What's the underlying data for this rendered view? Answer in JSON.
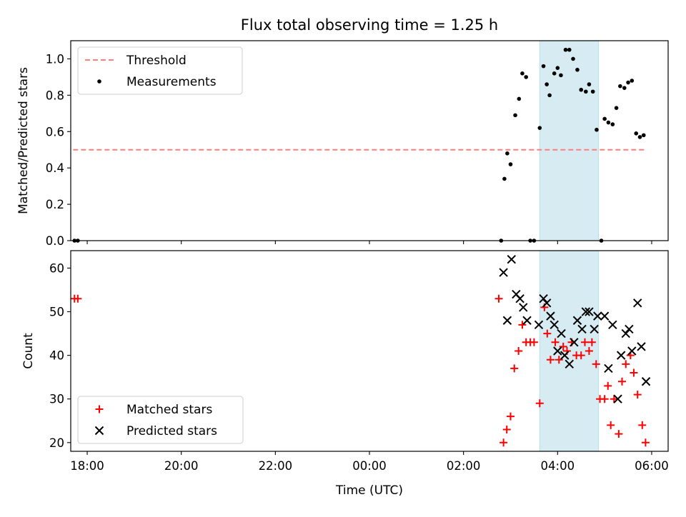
{
  "chart_data": {
    "title": "Flux total observing time = 1.25 h",
    "x_axis": {
      "label": "Time (UTC)",
      "range": [
        -6.35,
        6.35
      ],
      "ticks": [
        {
          "v": -6,
          "label": "18:00"
        },
        {
          "v": -4,
          "label": "20:00"
        },
        {
          "v": -2,
          "label": "22:00"
        },
        {
          "v": 0,
          "label": "00:00"
        },
        {
          "v": 2,
          "label": "02:00"
        },
        {
          "v": 4,
          "label": "04:00"
        },
        {
          "v": 6,
          "label": "06:00"
        }
      ]
    },
    "highlight_span": {
      "x": [
        3.62,
        4.87
      ],
      "color": "#add8e6"
    },
    "top": {
      "type": "scatter",
      "ylabel": "Matched/Predicted stars",
      "ylim": [
        0,
        1.1
      ],
      "yticks": [
        "0.0",
        "0.2",
        "0.4",
        "0.6",
        "0.8",
        "1.0"
      ],
      "threshold": {
        "name": "Threshold",
        "y": 0.5,
        "x": [
          -6.3,
          5.85
        ],
        "color": "#ff7f7f"
      },
      "measurements": {
        "name": "Measurements",
        "color": "#000000",
        "points": [
          [
            -6.27,
            0.0
          ],
          [
            -6.2,
            0.0
          ],
          [
            2.8,
            0.0
          ],
          [
            2.87,
            0.34
          ],
          [
            2.93,
            0.48
          ],
          [
            3.0,
            0.42
          ],
          [
            3.1,
            0.69
          ],
          [
            3.18,
            0.78
          ],
          [
            3.25,
            0.92
          ],
          [
            3.33,
            0.9
          ],
          [
            3.42,
            0.0
          ],
          [
            3.5,
            0.0
          ],
          [
            3.62,
            0.62
          ],
          [
            3.7,
            0.96
          ],
          [
            3.77,
            0.86
          ],
          [
            3.83,
            0.8
          ],
          [
            3.93,
            0.92
          ],
          [
            4.0,
            0.95
          ],
          [
            4.07,
            0.91
          ],
          [
            4.17,
            1.05
          ],
          [
            4.25,
            1.05
          ],
          [
            4.33,
            1.0
          ],
          [
            4.42,
            0.94
          ],
          [
            4.5,
            0.83
          ],
          [
            4.6,
            0.82
          ],
          [
            4.67,
            0.86
          ],
          [
            4.75,
            0.82
          ],
          [
            4.83,
            0.61
          ],
          [
            4.93,
            0.0
          ],
          [
            5.0,
            0.67
          ],
          [
            5.08,
            0.65
          ],
          [
            5.17,
            0.64
          ],
          [
            5.25,
            0.73
          ],
          [
            5.33,
            0.85
          ],
          [
            5.42,
            0.84
          ],
          [
            5.5,
            0.87
          ],
          [
            5.58,
            0.88
          ],
          [
            5.67,
            0.59
          ],
          [
            5.75,
            0.57
          ],
          [
            5.83,
            0.58
          ]
        ]
      },
      "legend": [
        "Threshold",
        "Measurements"
      ]
    },
    "bottom": {
      "type": "scatter",
      "ylabel": "Count",
      "ylim": [
        18,
        64
      ],
      "yticks": [
        20,
        30,
        40,
        50,
        60
      ],
      "series": [
        {
          "name": "Matched stars",
          "marker": "plus",
          "color": "#ff0000",
          "points": [
            [
              -6.27,
              53
            ],
            [
              -6.2,
              53
            ],
            [
              2.75,
              53
            ],
            [
              2.85,
              20
            ],
            [
              2.92,
              23
            ],
            [
              3.0,
              26
            ],
            [
              3.08,
              37
            ],
            [
              3.17,
              41
            ],
            [
              3.25,
              47
            ],
            [
              3.33,
              43
            ],
            [
              3.42,
              43
            ],
            [
              3.5,
              43
            ],
            [
              3.62,
              29
            ],
            [
              3.72,
              51
            ],
            [
              3.78,
              45
            ],
            [
              3.85,
              39
            ],
            [
              3.95,
              43
            ],
            [
              4.03,
              39
            ],
            [
              4.12,
              42
            ],
            [
              4.2,
              41
            ],
            [
              4.3,
              43
            ],
            [
              4.4,
              40
            ],
            [
              4.5,
              40
            ],
            [
              4.58,
              43
            ],
            [
              4.67,
              41
            ],
            [
              4.73,
              43
            ],
            [
              4.82,
              38
            ],
            [
              4.9,
              30
            ],
            [
              5.0,
              30
            ],
            [
              5.07,
              33
            ],
            [
              5.13,
              24
            ],
            [
              5.2,
              30
            ],
            [
              5.3,
              22
            ],
            [
              5.37,
              34
            ],
            [
              5.45,
              38
            ],
            [
              5.55,
              40
            ],
            [
              5.62,
              36
            ],
            [
              5.7,
              31
            ],
            [
              5.8,
              24
            ],
            [
              5.87,
              20
            ]
          ]
        },
        {
          "name": "Predicted stars",
          "marker": "x",
          "color": "#000000",
          "points": [
            [
              2.85,
              59
            ],
            [
              2.93,
              48
            ],
            [
              3.02,
              62
            ],
            [
              3.12,
              54
            ],
            [
              3.2,
              53
            ],
            [
              3.27,
              51
            ],
            [
              3.35,
              48
            ],
            [
              3.6,
              47
            ],
            [
              3.7,
              53
            ],
            [
              3.77,
              52
            ],
            [
              3.85,
              49
            ],
            [
              3.93,
              47
            ],
            [
              4.0,
              41
            ],
            [
              4.08,
              45
            ],
            [
              4.15,
              40
            ],
            [
              4.25,
              38
            ],
            [
              4.35,
              43
            ],
            [
              4.42,
              48
            ],
            [
              4.52,
              46
            ],
            [
              4.6,
              50
            ],
            [
              4.67,
              50
            ],
            [
              4.78,
              46
            ],
            [
              4.85,
              49
            ],
            [
              5.0,
              49
            ],
            [
              5.08,
              37
            ],
            [
              5.17,
              47
            ],
            [
              5.28,
              30
            ],
            [
              5.35,
              40
            ],
            [
              5.45,
              45
            ],
            [
              5.52,
              46
            ],
            [
              5.58,
              41
            ],
            [
              5.7,
              52
            ],
            [
              5.78,
              42
            ],
            [
              5.88,
              34
            ]
          ]
        }
      ],
      "legend": [
        "Matched stars",
        "Predicted stars"
      ]
    }
  }
}
